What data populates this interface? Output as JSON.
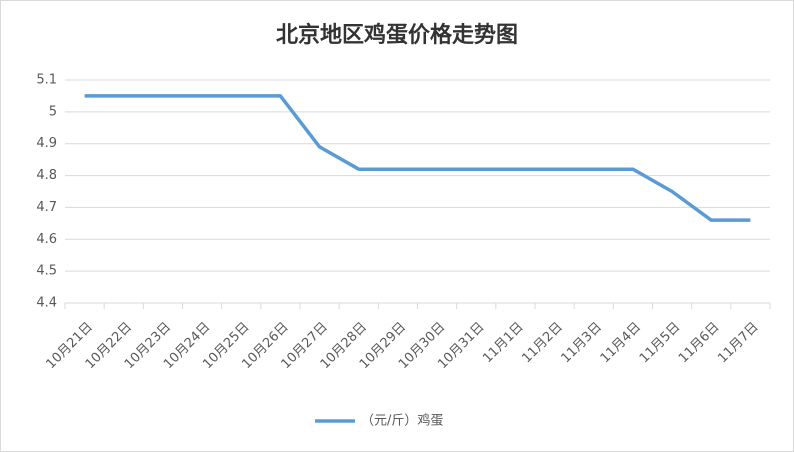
{
  "chart_data": {
    "type": "line",
    "title": "北京地区鸡蛋价格走势图",
    "categories": [
      "10月21日",
      "10月22日",
      "10月23日",
      "10月24日",
      "10月25日",
      "10月26日",
      "10月27日",
      "10月28日",
      "10月29日",
      "10月30日",
      "10月31日",
      "11月1日",
      "11月2日",
      "11月3日",
      "11月4日",
      "11月5日",
      "11月6日",
      "11月7日"
    ],
    "series": [
      {
        "name": "（元/斤）鸡蛋",
        "color": "#5b9bd5",
        "values": [
          5.05,
          5.05,
          5.05,
          5.05,
          5.05,
          5.05,
          4.89,
          4.82,
          4.82,
          4.82,
          4.82,
          4.82,
          4.82,
          4.82,
          4.82,
          4.75,
          4.66,
          4.66
        ]
      }
    ],
    "ylim": [
      4.4,
      5.1
    ],
    "yticks": [
      4.4,
      4.5,
      4.6,
      4.7,
      4.8,
      4.9,
      5,
      5.1
    ],
    "grid": true,
    "legend": "bottom"
  }
}
